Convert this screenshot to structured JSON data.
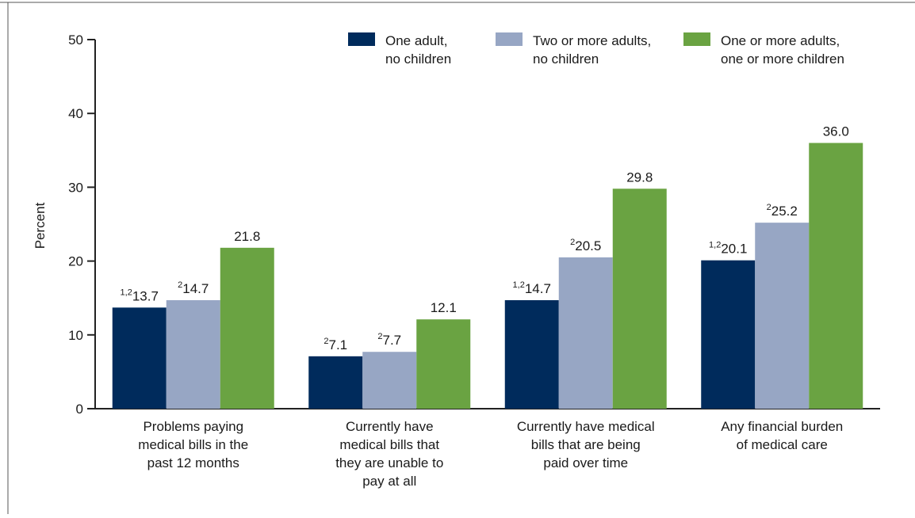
{
  "colors": {
    "one_adult": "#002b5c",
    "two_adults": "#97a6c4",
    "with_children": "#6aa342",
    "axis": "#222222",
    "frame": "#555555"
  },
  "chart_data": {
    "type": "bar",
    "title": "",
    "xlabel": "",
    "ylabel": "Percent",
    "ylim": [
      0,
      50
    ],
    "yticks": [
      0,
      10,
      20,
      30,
      40,
      50
    ],
    "legend_position": "top-right",
    "categories": [
      [
        "Problems paying",
        "medical bills in the",
        "past 12 months"
      ],
      [
        "Currently have",
        "medical bills that",
        "they are unable to",
        "pay at all"
      ],
      [
        "Currently have medical",
        "bills that are being",
        "paid over time"
      ],
      [
        "Any financial burden",
        "of medical care"
      ]
    ],
    "series": [
      {
        "name": [
          "One adult,",
          "no children"
        ],
        "color_key": "one_adult",
        "values": [
          13.7,
          7.1,
          14.7,
          20.1
        ],
        "labels": [
          "13.7",
          "7.1",
          "14.7",
          "20.1"
        ],
        "superscripts": [
          "1,2",
          "2",
          "1,2",
          "1,2"
        ]
      },
      {
        "name": [
          "Two or more adults,",
          "no children"
        ],
        "color_key": "two_adults",
        "values": [
          14.7,
          7.7,
          20.5,
          25.2
        ],
        "labels": [
          "14.7",
          "7.7",
          "20.5",
          "25.2"
        ],
        "superscripts": [
          "2",
          "2",
          "2",
          "2"
        ]
      },
      {
        "name": [
          "One or more adults,",
          "one or more children"
        ],
        "color_key": "with_children",
        "values": [
          21.8,
          12.1,
          29.8,
          36.0
        ],
        "labels": [
          "21.8",
          "12.1",
          "29.8",
          "36.0"
        ],
        "superscripts": [
          "",
          "",
          "",
          ""
        ]
      }
    ]
  }
}
